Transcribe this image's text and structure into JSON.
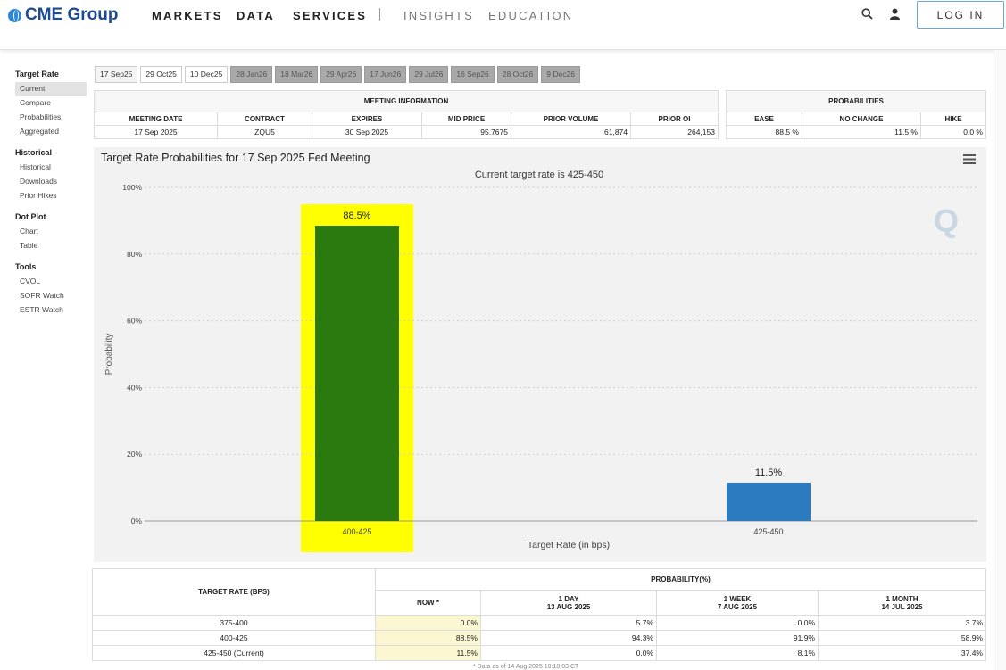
{
  "header": {
    "logo_text": "CME Group",
    "nav": [
      "MARKETS",
      "DATA",
      "SERVICES",
      "INSIGHTS",
      "EDUCATION"
    ],
    "login_label": "LOG IN"
  },
  "sidebar": {
    "sections": [
      {
        "title": "Target Rate",
        "items": [
          "Current",
          "Compare",
          "Probabilities",
          "Aggregated"
        ]
      },
      {
        "title": "Historical",
        "items": [
          "Historical",
          "Downloads",
          "Prior Hikes"
        ]
      },
      {
        "title": "Dot Plot",
        "items": [
          "Chart",
          "Table"
        ]
      },
      {
        "title": "Tools",
        "items": [
          "CVOL",
          "SOFR Watch",
          "ESTR Watch"
        ]
      }
    ],
    "active": "Current"
  },
  "date_tabs": [
    "17 Sep25",
    "29 Oct25",
    "10 Dec25",
    "28 Jan26",
    "18 Mar26",
    "29 Apr26",
    "17 Jun26",
    "29 Jul26",
    "16 Sep26",
    "28 Oct26",
    "9 Dec26"
  ],
  "meeting_info": {
    "caption": "MEETING INFORMATION",
    "headers": [
      "MEETING DATE",
      "CONTRACT",
      "EXPIRES",
      "MID PRICE",
      "PRIOR VOLUME",
      "PRIOR OI"
    ],
    "values": [
      "17 Sep 2025",
      "ZQU5",
      "30 Sep 2025",
      "95.7675",
      "61,874",
      "264,153"
    ]
  },
  "probabilities": {
    "caption": "PROBABILITIES",
    "headers": [
      "EASE",
      "NO CHANGE",
      "HIKE"
    ],
    "values": [
      "88.5 %",
      "11.5 %",
      "0.0 %"
    ]
  },
  "chart": {
    "title": "Target Rate Probabilities for 17 Sep 2025 Fed Meeting",
    "subtitle": "Current target rate is 425-450",
    "watermark": "Q"
  },
  "chart_data": {
    "type": "bar",
    "title": "Target Rate Probabilities for 17 Sep 2025 Fed Meeting",
    "subtitle": "Current target rate is 425-450",
    "categories": [
      "400-425",
      "425-450"
    ],
    "values": [
      88.5,
      11.5
    ],
    "data_labels": [
      "88.5%",
      "11.5%"
    ],
    "xlabel": "Target Rate (in bps)",
    "ylabel": "Probability",
    "ylim": [
      0,
      100
    ],
    "yticks": [
      0,
      20,
      40,
      60,
      80,
      100
    ],
    "ytick_labels": [
      "0%",
      "20%",
      "40%",
      "60%",
      "80%",
      "100%"
    ],
    "colors": [
      "#2a7a0f",
      "#2c7bbf"
    ],
    "highlight_color": "#ffff00",
    "highlight_category": "400-425",
    "grid": true
  },
  "prob_table": {
    "rate_header": "TARGET RATE (BPS)",
    "prob_header": "PROBABILITY(%)",
    "columns": [
      {
        "line1": "NOW *",
        "line2": ""
      },
      {
        "line1": "1 DAY",
        "line2": "13 AUG 2025"
      },
      {
        "line1": "1 WEEK",
        "line2": "7 AUG 2025"
      },
      {
        "line1": "1 MONTH",
        "line2": "14 JUL 2025"
      }
    ],
    "rows": [
      {
        "rate": "375-400",
        "values": [
          "0.0%",
          "5.7%",
          "0.0%",
          "3.7%"
        ]
      },
      {
        "rate": "400-425",
        "values": [
          "88.5%",
          "94.3%",
          "91.9%",
          "58.9%"
        ]
      },
      {
        "rate": "425-450 (Current)",
        "values": [
          "11.5%",
          "0.0%",
          "8.1%",
          "37.4%"
        ]
      }
    ]
  },
  "footnote": "* Data as of 14 Aug 2025 10:18:03 CT"
}
